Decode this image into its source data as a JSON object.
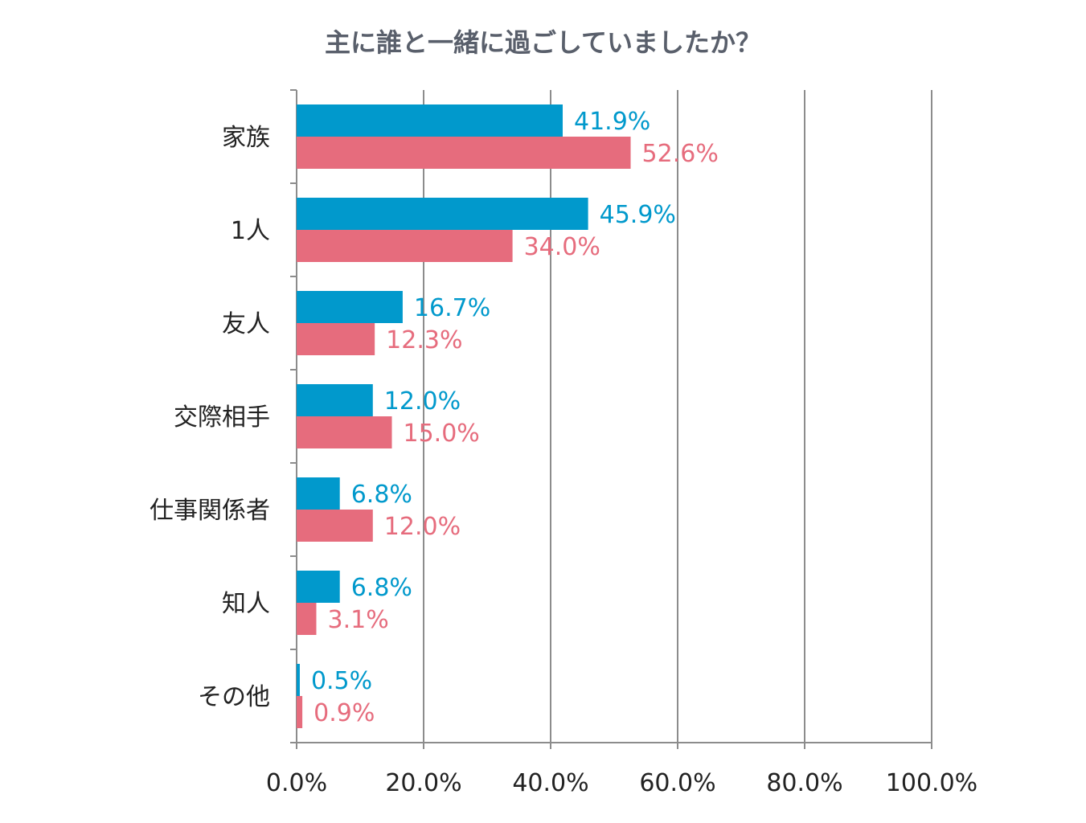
{
  "chart_data": {
    "type": "bar",
    "orientation": "horizontal",
    "title": "主に誰と一緒に過ごしていましたか？",
    "categories": [
      "家族",
      "1人",
      "友人",
      "交際相手",
      "仕事関係者",
      "知人",
      "その他"
    ],
    "series": [
      {
        "color": "#0199cc",
        "values": [
          41.9,
          45.9,
          16.7,
          12.0,
          6.8,
          6.8,
          0.5
        ],
        "labels": [
          "41.9%",
          "45.9%",
          "16.7%",
          "12.0%",
          "6.8%",
          "6.8%",
          "0.5%"
        ]
      },
      {
        "color": "#e66c7d",
        "values": [
          52.6,
          34.0,
          12.3,
          15.0,
          12.0,
          3.1,
          0.9
        ],
        "labels": [
          "52.6%",
          "34.0%",
          "12.3%",
          "15.0%",
          "12.0%",
          "3.1%",
          "0.9%"
        ]
      }
    ],
    "xlim": [
      0,
      100
    ],
    "x_ticks": [
      "0.0%",
      "20.0%",
      "40.0%",
      "60.0%",
      "80.0%",
      "100.0%"
    ],
    "grid": "vertical",
    "legend": "none"
  }
}
